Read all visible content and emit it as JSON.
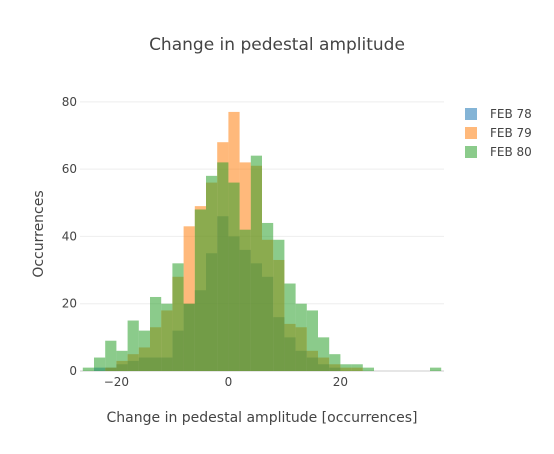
{
  "chart_data": {
    "type": "bar",
    "subtype": "overlaid-histogram",
    "title": "Change in pedestal amplitude",
    "xlabel": "Change in pedestal amplitude [occurrences]",
    "ylabel": "Occurrences",
    "xlim": [
      -26.5,
      38.5
    ],
    "ylim": [
      0,
      85
    ],
    "bin_width": 2,
    "xticks": [
      -20,
      0,
      20
    ],
    "xtick_labels": [
      "−20",
      "0",
      "20"
    ],
    "yticks": [
      0,
      20,
      40,
      60,
      80
    ],
    "ytick_labels": [
      "0",
      "20",
      "40",
      "60",
      "80"
    ],
    "grid": true,
    "legend_position": "top-right",
    "series": [
      {
        "name": "FEB 78",
        "color": "#1f77b4",
        "x": [
          -23,
          -21,
          -19,
          -17,
          -15,
          -13,
          -11,
          -9,
          -7,
          -5,
          -3,
          -1,
          1,
          3,
          5,
          7,
          9,
          11,
          13,
          15,
          17,
          19
        ],
        "values": [
          1,
          1,
          2,
          3,
          4,
          4,
          4,
          12,
          20,
          24,
          35,
          46,
          40,
          36,
          32,
          28,
          16,
          10,
          6,
          4,
          2,
          1
        ]
      },
      {
        "name": "FEB 79",
        "color": "#ff7f0e",
        "x": [
          -23,
          -21,
          -19,
          -17,
          -15,
          -13,
          -11,
          -9,
          -7,
          -5,
          -3,
          -1,
          1,
          3,
          5,
          7,
          9,
          11,
          13,
          15,
          17,
          19,
          21,
          23
        ],
        "values": [
          0,
          1,
          3,
          5,
          7,
          13,
          18,
          28,
          43,
          49,
          56,
          68,
          77,
          62,
          61,
          39,
          33,
          14,
          13,
          6,
          4,
          2,
          1,
          1
        ]
      },
      {
        "name": "FEB 80",
        "color": "#2ca02c",
        "x": [
          -25,
          -23,
          -21,
          -19,
          -17,
          -15,
          -13,
          -11,
          -9,
          -7,
          -5,
          -3,
          -1,
          1,
          3,
          5,
          7,
          9,
          11,
          13,
          15,
          17,
          19,
          21,
          23,
          25,
          27,
          29,
          31,
          33,
          35,
          37
        ],
        "values": [
          1,
          4,
          9,
          6,
          15,
          12,
          22,
          20,
          32,
          20,
          48,
          58,
          62,
          56,
          42,
          64,
          44,
          39,
          26,
          20,
          18,
          10,
          5,
          2,
          2,
          1,
          0,
          0,
          0,
          0,
          0,
          1
        ]
      }
    ]
  }
}
